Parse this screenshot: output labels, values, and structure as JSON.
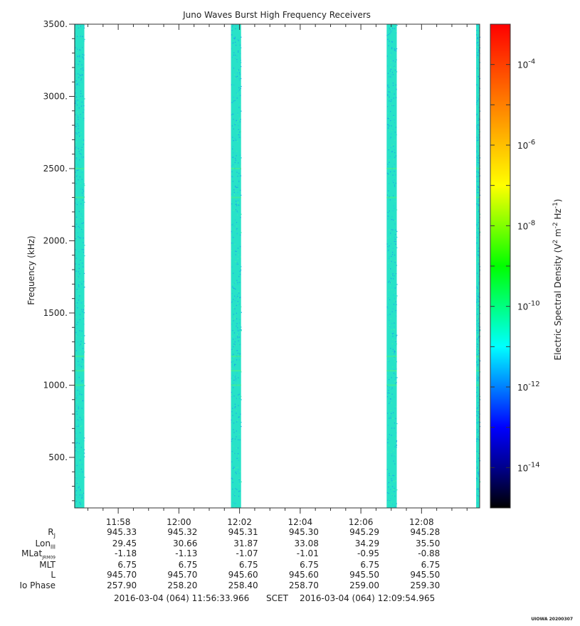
{
  "chart_data": {
    "type": "heatmap",
    "title": "Juno Waves Burst High Frequency Receivers",
    "ylabel": "Frequency (kHz)",
    "ylim": [
      150,
      3500
    ],
    "yticks": [
      "500.",
      "1000.",
      "1500.",
      "2000.",
      "2500.",
      "3000.",
      "3500."
    ],
    "ytick_values": [
      500,
      1000,
      1500,
      2000,
      2500,
      3000,
      3500
    ],
    "xrange": [
      "11:56:33.966",
      "12:09:54.965"
    ],
    "xticks": [
      "11:58",
      "12:00",
      "12:02",
      "12:04",
      "12:06",
      "12:08"
    ],
    "xtick_minutes": [
      718,
      720,
      722,
      724,
      726,
      728
    ],
    "start_minute": 716.566,
    "end_minute": 729.916,
    "bursts": [
      {
        "start": "11:56:33",
        "end": "11:56:53",
        "level": "1e-11.5"
      },
      {
        "start": "12:01:43",
        "end": "12:02:03",
        "level": "1e-11.5"
      },
      {
        "start": "12:06:51",
        "end": "12:07:11",
        "level": "1e-11.5"
      },
      {
        "start": "12:09:48",
        "end": "12:09:55",
        "level": "1e-11.5"
      }
    ],
    "colorbar": {
      "label": "Electric Spectral Density (V",
      "label_sup1": "2",
      "label_mid": " m",
      "label_sup2": "-2",
      "label_mid2": " Hz",
      "label_sup3": "-1",
      "label_end": ")",
      "ticks": [
        {
          "base": "10",
          "exp": "-4",
          "value": -4
        },
        {
          "base": "10",
          "exp": "-6",
          "value": -6
        },
        {
          "base": "10",
          "exp": "-8",
          "value": -8
        },
        {
          "base": "10",
          "exp": "-10",
          "value": -10
        },
        {
          "base": "10",
          "exp": "-12",
          "value": -12
        },
        {
          "base": "10",
          "exp": "-14",
          "value": -14
        }
      ],
      "range_log": [
        -15,
        -3
      ],
      "colors": [
        "#000000",
        "#00008c",
        "#0000ff",
        "#0080ff",
        "#00ffff",
        "#00ff80",
        "#00ff00",
        "#80ff00",
        "#ffff00",
        "#ffc000",
        "#ff8000",
        "#ff4000",
        "#ff0000"
      ]
    },
    "grid": false
  },
  "ephemeris": {
    "labels": [
      "R",
      "Lon",
      "MLat",
      "MLT",
      "L",
      "Io Phase"
    ],
    "subscripts": [
      "J",
      "III",
      "JRM09",
      "",
      "",
      ""
    ],
    "rows": [
      [
        "945.33",
        "945.32",
        "945.31",
        "945.30",
        "945.29",
        "945.28"
      ],
      [
        "29.45",
        "30.66",
        "31.87",
        "33.08",
        "34.29",
        "35.50"
      ],
      [
        "-1.18",
        "-1.13",
        "-1.07",
        "-1.01",
        "-0.95",
        "-0.88"
      ],
      [
        "6.75",
        "6.75",
        "6.75",
        "6.75",
        "6.75",
        "6.75"
      ],
      [
        "945.70",
        "945.70",
        "945.60",
        "945.60",
        "945.50",
        "945.50"
      ],
      [
        "257.90",
        "258.20",
        "258.40",
        "258.70",
        "259.00",
        "259.30"
      ]
    ]
  },
  "footer": {
    "start": "2016-03-04 (064) 11:56:33.966",
    "scet": "SCET",
    "end": "2016-03-04 (064) 12:09:54.965"
  },
  "stamp": "UIOWA 20200307"
}
